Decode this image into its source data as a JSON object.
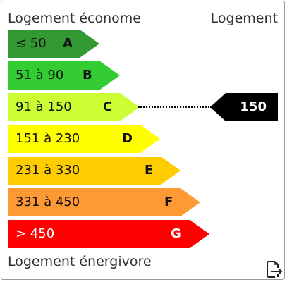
{
  "header": {
    "left": "Logement économe",
    "right": "Logement"
  },
  "footer": {
    "label": "Logement énergivore"
  },
  "classes": [
    {
      "range": "≤ 50",
      "letter": "A",
      "color": "#339933",
      "text_color": "#111111"
    },
    {
      "range": "51 à 90",
      "letter": "B",
      "color": "#33cc33",
      "text_color": "#111111"
    },
    {
      "range": "91 à 150",
      "letter": "C",
      "color": "#ccff33",
      "text_color": "#111111"
    },
    {
      "range": "151 à 230",
      "letter": "D",
      "color": "#ffff00",
      "text_color": "#111111"
    },
    {
      "range": "231 à 330",
      "letter": "E",
      "color": "#ffcc00",
      "text_color": "#111111"
    },
    {
      "range": "331 à 450",
      "letter": "F",
      "color": "#ff9933",
      "text_color": "#111111"
    },
    {
      "range": "> 450",
      "letter": "G",
      "color": "#ff0000",
      "text_color": "#ffffff"
    }
  ],
  "indicator": {
    "value": "150",
    "class": "C"
  },
  "icons": {
    "export": "export-document-icon"
  }
}
